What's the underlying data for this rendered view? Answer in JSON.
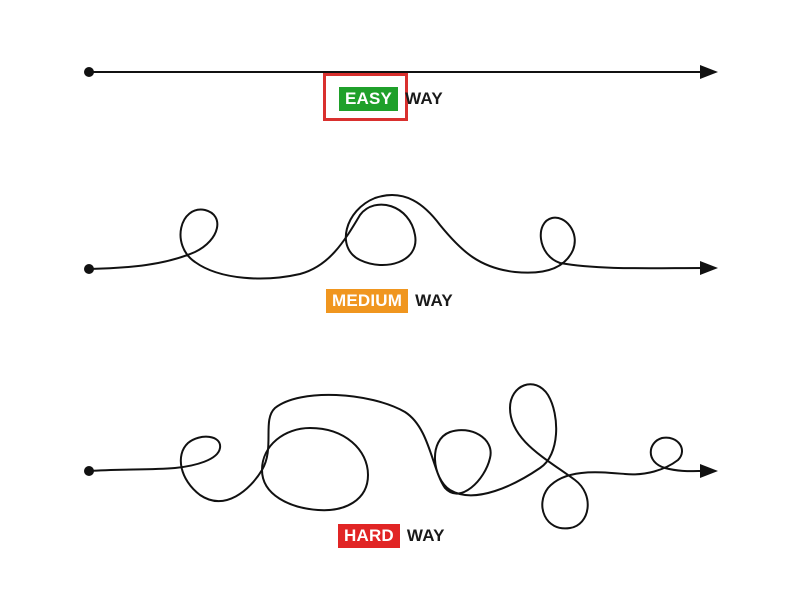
{
  "paths": [
    {
      "difficulty": "easy",
      "badge": "EASY",
      "badge_color": "#1fa02a",
      "suffix": "WAY"
    },
    {
      "difficulty": "medium",
      "badge": "MEDIUM",
      "badge_color": "#f0961f",
      "suffix": "WAY"
    },
    {
      "difficulty": "hard",
      "badge": "HARD",
      "badge_color": "#e12525",
      "suffix": "WAY"
    }
  ],
  "highlight": {
    "target": "EASY",
    "color": "#d9302e"
  },
  "line_color": "#111111"
}
